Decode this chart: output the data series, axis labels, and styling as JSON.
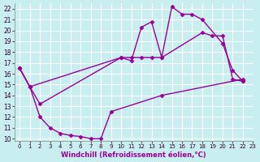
{
  "xlabel": "Windchill (Refroidissement éolien,°C)",
  "bg_color": "#c8eef0",
  "grid_color": "#ffffff",
  "line_color": "#990099",
  "xlim": [
    -0.5,
    23
  ],
  "ylim": [
    9.8,
    22.5
  ],
  "xticks": [
    0,
    1,
    2,
    3,
    4,
    5,
    6,
    7,
    8,
    9,
    10,
    11,
    12,
    13,
    14,
    15,
    16,
    17,
    18,
    19,
    20,
    21,
    22,
    23
  ],
  "yticks": [
    10,
    11,
    12,
    13,
    14,
    15,
    16,
    17,
    18,
    19,
    20,
    21,
    22
  ],
  "line1_x": [
    0,
    1,
    2,
    3,
    4,
    5,
    6,
    7,
    8,
    9,
    14,
    22
  ],
  "line1_y": [
    16.5,
    14.8,
    12.0,
    11.0,
    10.5,
    10.3,
    10.2,
    10.0,
    10.0,
    12.5,
    14.0,
    15.5
  ],
  "line2_x": [
    0,
    1,
    2,
    10,
    11,
    12,
    13,
    14,
    15,
    16,
    17,
    18,
    20,
    21,
    22
  ],
  "line2_y": [
    16.5,
    14.8,
    13.2,
    17.5,
    17.2,
    20.3,
    20.8,
    17.5,
    22.2,
    21.5,
    21.5,
    21.0,
    18.8,
    16.3,
    15.3
  ],
  "line3_x": [
    0,
    1,
    10,
    11,
    12,
    13,
    14,
    18,
    19,
    20,
    21,
    22
  ],
  "line3_y": [
    16.5,
    14.8,
    17.5,
    17.5,
    17.5,
    17.5,
    17.5,
    19.8,
    19.5,
    19.5,
    15.5,
    15.3
  ],
  "marker": "D",
  "markersize": 2.5,
  "linewidth": 1.0
}
